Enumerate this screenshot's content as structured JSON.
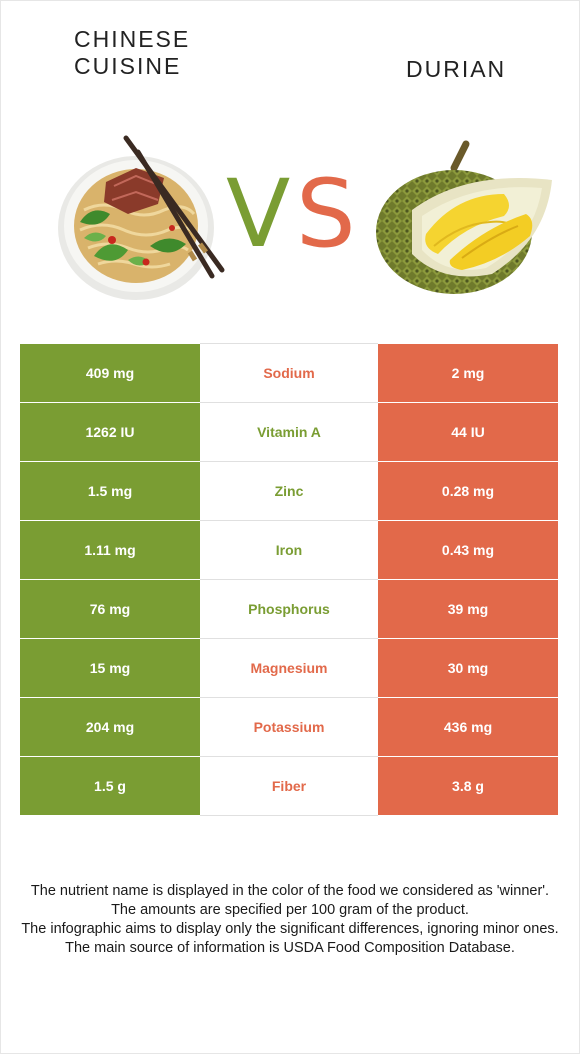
{
  "header": {
    "left_food": "CHINESE\nCUISINE",
    "vs_v": "V",
    "vs_s": "S",
    "right_food": "DURIAN"
  },
  "colors": {
    "left": "#7a9d33",
    "right": "#e2694a"
  },
  "illustrations": {
    "left": "noodle-bowl-icon",
    "right": "durian-fruit-icon"
  },
  "chart_data": {
    "type": "table",
    "columns": [
      "Chinese cuisine",
      "Nutrient",
      "Durian"
    ],
    "rows": [
      {
        "nutrient": "Sodium",
        "left": "409 mg",
        "right": "2 mg",
        "winner": "right"
      },
      {
        "nutrient": "Vitamin A",
        "left": "1262 IU",
        "right": "44 IU",
        "winner": "left"
      },
      {
        "nutrient": "Zinc",
        "left": "1.5 mg",
        "right": "0.28 mg",
        "winner": "left"
      },
      {
        "nutrient": "Iron",
        "left": "1.11 mg",
        "right": "0.43 mg",
        "winner": "left"
      },
      {
        "nutrient": "Phosphorus",
        "left": "76 mg",
        "right": "39 mg",
        "winner": "left"
      },
      {
        "nutrient": "Magnesium",
        "left": "15 mg",
        "right": "30 mg",
        "winner": "right"
      },
      {
        "nutrient": "Potassium",
        "left": "204 mg",
        "right": "436 mg",
        "winner": "right"
      },
      {
        "nutrient": "Fiber",
        "left": "1.5 g",
        "right": "3.8 g",
        "winner": "right"
      }
    ]
  },
  "footnote": [
    "The nutrient name is displayed in the color of the food we considered as 'winner'.",
    "The amounts are specified per 100 gram of the product.",
    "The infographic aims to display only the significant differences, ignoring minor ones.",
    "The main source of information is USDA Food Composition Database."
  ]
}
